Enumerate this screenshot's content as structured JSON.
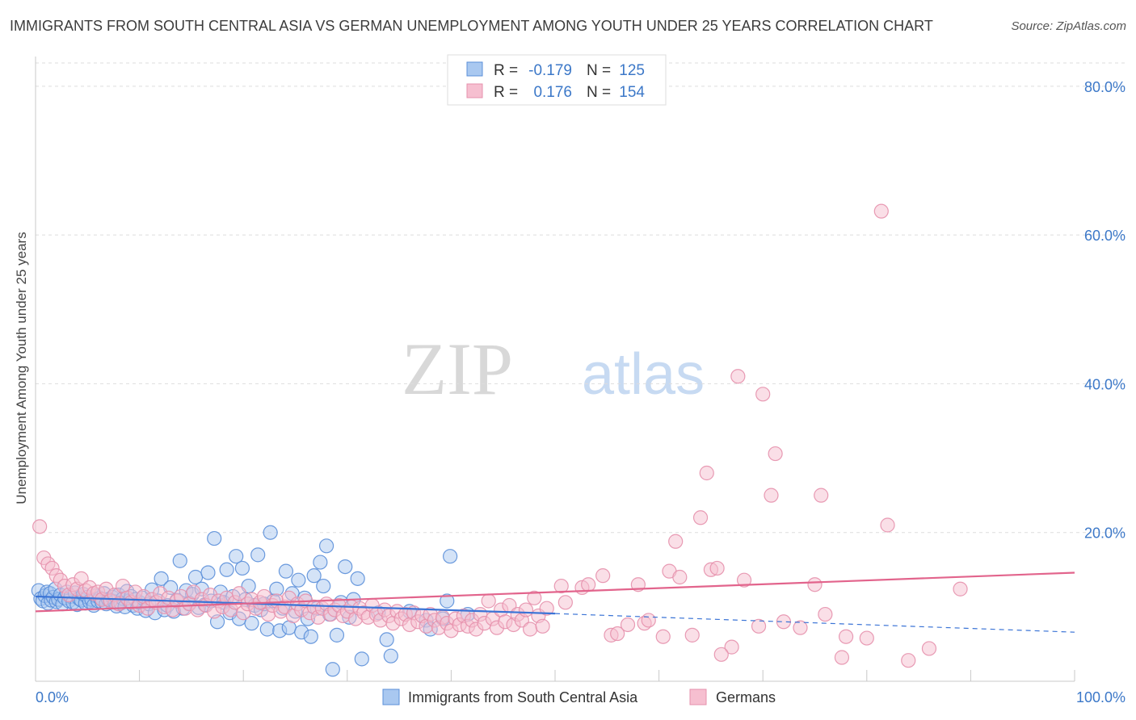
{
  "title": "IMMIGRANTS FROM SOUTH CENTRAL ASIA VS GERMAN UNEMPLOYMENT AMONG YOUTH UNDER 25 YEARS CORRELATION CHART",
  "source": "Source: ZipAtlas.com",
  "watermark": {
    "zip": "ZIP",
    "atlas": "atlas"
  },
  "colors": {
    "blue_fill": "#a9c8f0",
    "blue_stroke": "#5b8fd9",
    "blue_line": "#3b74d6",
    "pink_fill": "#f6bfd0",
    "pink_stroke": "#e690ac",
    "pink_line": "#e2648c",
    "axis_label": "#3c78c8",
    "grid": "#dddddd"
  },
  "stats_legend": {
    "rows": [
      {
        "r_label": "R =",
        "r_value": "-0.179",
        "n_label": "N =",
        "n_value": "125",
        "color": "blue"
      },
      {
        "r_label": "R =",
        "r_value": "0.176",
        "n_label": "N =",
        "n_value": "154",
        "color": "pink"
      }
    ]
  },
  "chart_data": {
    "type": "scatter",
    "title": "IMMIGRANTS FROM SOUTH CENTRAL ASIA VS GERMAN UNEMPLOYMENT AMONG YOUTH UNDER 25 YEARS CORRELATION CHART",
    "xlabel": "",
    "ylabel": "Unemployment Among Youth under 25 years",
    "xlim": [
      0,
      100
    ],
    "ylim": [
      0,
      84
    ],
    "x_tick_labels": [
      "0.0%",
      "100.0%"
    ],
    "y_ticks": [
      20,
      40,
      60,
      80
    ],
    "y_tick_labels": [
      "20.0%",
      "40.0%",
      "60.0%",
      "80.0%"
    ],
    "grid": true,
    "legend_position": "bottom",
    "series": [
      {
        "name": "Immigrants from South Central Asia",
        "color": "blue",
        "trend": {
          "x0": 0,
          "y0": 11.4,
          "x_solid_end": 50,
          "y_solid_end": 9.1,
          "x1": 100,
          "y1": 6.6
        },
        "points": [
          [
            0.3,
            12.2
          ],
          [
            0.5,
            11.1
          ],
          [
            0.7,
            10.8
          ],
          [
            0.9,
            11.5
          ],
          [
            1.1,
            12.0
          ],
          [
            1.2,
            10.5
          ],
          [
            1.4,
            11.8
          ],
          [
            1.5,
            10.9
          ],
          [
            1.7,
            11.3
          ],
          [
            1.9,
            12.4
          ],
          [
            2.0,
            10.7
          ],
          [
            2.2,
            11.0
          ],
          [
            2.4,
            11.6
          ],
          [
            2.6,
            10.4
          ],
          [
            2.8,
            11.2
          ],
          [
            3.0,
            12.0
          ],
          [
            3.2,
            10.8
          ],
          [
            3.4,
            11.4
          ],
          [
            3.6,
            10.6
          ],
          [
            3.8,
            11.9
          ],
          [
            4.0,
            10.3
          ],
          [
            4.2,
            11.1
          ],
          [
            4.4,
            10.9
          ],
          [
            4.6,
            11.7
          ],
          [
            4.8,
            10.5
          ],
          [
            5.0,
            11.3
          ],
          [
            5.2,
            10.7
          ],
          [
            5.4,
            11.0
          ],
          [
            5.6,
            10.2
          ],
          [
            5.8,
            11.5
          ],
          [
            6.0,
            10.8
          ],
          [
            6.2,
            11.2
          ],
          [
            6.4,
            10.6
          ],
          [
            6.6,
            11.8
          ],
          [
            6.8,
            10.4
          ],
          [
            7.0,
            11.0
          ],
          [
            7.2,
            10.9
          ],
          [
            7.4,
            11.3
          ],
          [
            7.6,
            10.7
          ],
          [
            7.8,
            10.1
          ],
          [
            8.0,
            11.6
          ],
          [
            8.2,
            10.5
          ],
          [
            8.4,
            11.1
          ],
          [
            8.6,
            10.0
          ],
          [
            8.8,
            12.1
          ],
          [
            9.0,
            10.8
          ],
          [
            9.2,
            11.4
          ],
          [
            9.4,
            10.2
          ],
          [
            9.6,
            11.0
          ],
          [
            9.8,
            9.8
          ],
          [
            10.0,
            10.6
          ],
          [
            10.3,
            11.2
          ],
          [
            10.6,
            9.5
          ],
          [
            10.9,
            10.4
          ],
          [
            11.2,
            12.3
          ],
          [
            11.5,
            9.2
          ],
          [
            11.8,
            10.8
          ],
          [
            12.1,
            13.8
          ],
          [
            12.4,
            9.6
          ],
          [
            12.7,
            10.2
          ],
          [
            13.0,
            12.6
          ],
          [
            13.3,
            9.4
          ],
          [
            13.6,
            10.9
          ],
          [
            13.9,
            16.2
          ],
          [
            14.2,
            9.8
          ],
          [
            14.5,
            12.2
          ],
          [
            14.8,
            10.5
          ],
          [
            15.1,
            11.7
          ],
          [
            15.4,
            14.0
          ],
          [
            15.7,
            9.9
          ],
          [
            16.0,
            12.4
          ],
          [
            16.3,
            10.3
          ],
          [
            16.6,
            14.6
          ],
          [
            16.9,
            10.8
          ],
          [
            17.2,
            19.2
          ],
          [
            17.5,
            8.0
          ],
          [
            17.8,
            12.0
          ],
          [
            18.1,
            10.6
          ],
          [
            18.4,
            15.0
          ],
          [
            18.7,
            9.2
          ],
          [
            19.0,
            11.4
          ],
          [
            19.3,
            16.8
          ],
          [
            19.6,
            8.4
          ],
          [
            19.9,
            15.2
          ],
          [
            20.2,
            11.0
          ],
          [
            20.5,
            12.8
          ],
          [
            20.8,
            7.8
          ],
          [
            21.1,
            10.2
          ],
          [
            21.4,
            17.0
          ],
          [
            21.7,
            9.6
          ],
          [
            22.0,
            10.4
          ],
          [
            22.3,
            7.0
          ],
          [
            22.6,
            20.0
          ],
          [
            22.9,
            10.8
          ],
          [
            23.2,
            12.4
          ],
          [
            23.5,
            6.8
          ],
          [
            23.8,
            9.8
          ],
          [
            24.1,
            14.8
          ],
          [
            24.4,
            7.2
          ],
          [
            24.7,
            11.8
          ],
          [
            25.0,
            9.4
          ],
          [
            25.3,
            13.6
          ],
          [
            25.6,
            6.6
          ],
          [
            25.9,
            11.2
          ],
          [
            26.2,
            8.4
          ],
          [
            26.5,
            6.0
          ],
          [
            26.8,
            14.2
          ],
          [
            27.1,
            9.8
          ],
          [
            27.4,
            16.0
          ],
          [
            27.7,
            12.8
          ],
          [
            28.0,
            18.2
          ],
          [
            28.3,
            9.0
          ],
          [
            28.6,
            1.6
          ],
          [
            29.0,
            6.2
          ],
          [
            29.4,
            10.6
          ],
          [
            29.8,
            15.4
          ],
          [
            30.2,
            8.6
          ],
          [
            30.6,
            11.0
          ],
          [
            31.0,
            13.8
          ],
          [
            31.4,
            3.0
          ],
          [
            33.0,
            9.2
          ],
          [
            33.8,
            5.6
          ],
          [
            34.2,
            3.4
          ],
          [
            36.0,
            9.4
          ],
          [
            37.6,
            8.2
          ],
          [
            38.0,
            7.0
          ],
          [
            39.2,
            8.4
          ],
          [
            39.6,
            10.8
          ],
          [
            39.9,
            16.8
          ],
          [
            41.6,
            9.0
          ]
        ]
      },
      {
        "name": "Germans",
        "color": "pink",
        "trend": {
          "x0": 0,
          "y0": 9.4,
          "x1": 100,
          "y1": 14.6
        },
        "points": [
          [
            0.4,
            20.8
          ],
          [
            0.8,
            16.6
          ],
          [
            1.2,
            15.8
          ],
          [
            1.6,
            15.2
          ],
          [
            2.0,
            14.2
          ],
          [
            2.4,
            13.6
          ],
          [
            2.8,
            12.8
          ],
          [
            3.2,
            11.6
          ],
          [
            3.6,
            13.0
          ],
          [
            4.0,
            12.4
          ],
          [
            4.4,
            13.8
          ],
          [
            4.8,
            12.2
          ],
          [
            5.2,
            12.6
          ],
          [
            5.6,
            11.8
          ],
          [
            6.0,
            12.0
          ],
          [
            6.4,
            11.0
          ],
          [
            6.8,
            12.4
          ],
          [
            7.2,
            10.8
          ],
          [
            7.6,
            11.6
          ],
          [
            8.0,
            10.4
          ],
          [
            8.4,
            12.8
          ],
          [
            8.8,
            11.2
          ],
          [
            9.2,
            10.6
          ],
          [
            9.6,
            12.0
          ],
          [
            10.0,
            10.2
          ],
          [
            10.4,
            11.4
          ],
          [
            10.8,
            9.8
          ],
          [
            11.2,
            11.0
          ],
          [
            11.6,
            10.6
          ],
          [
            12.0,
            11.8
          ],
          [
            12.4,
            10.0
          ],
          [
            12.8,
            11.2
          ],
          [
            13.2,
            9.6
          ],
          [
            13.6,
            10.8
          ],
          [
            14.0,
            11.4
          ],
          [
            14.4,
            9.8
          ],
          [
            14.8,
            10.4
          ],
          [
            15.2,
            12.0
          ],
          [
            15.6,
            9.6
          ],
          [
            16.0,
            11.0
          ],
          [
            16.4,
            10.2
          ],
          [
            16.8,
            11.6
          ],
          [
            17.2,
            9.4
          ],
          [
            17.6,
            10.8
          ],
          [
            18.0,
            10.0
          ],
          [
            18.4,
            11.2
          ],
          [
            18.8,
            9.6
          ],
          [
            19.2,
            10.6
          ],
          [
            19.6,
            11.8
          ],
          [
            20.0,
            9.2
          ],
          [
            20.4,
            10.4
          ],
          [
            20.8,
            11.0
          ],
          [
            21.2,
            9.8
          ],
          [
            21.6,
            10.6
          ],
          [
            22.0,
            11.4
          ],
          [
            22.4,
            9.0
          ],
          [
            22.8,
            10.2
          ],
          [
            23.2,
            10.8
          ],
          [
            23.6,
            9.4
          ],
          [
            24.0,
            10.0
          ],
          [
            24.4,
            11.2
          ],
          [
            24.8,
            8.8
          ],
          [
            25.2,
            10.4
          ],
          [
            25.6,
            9.6
          ],
          [
            26.0,
            10.8
          ],
          [
            26.4,
            9.2
          ],
          [
            26.8,
            10.0
          ],
          [
            27.2,
            8.6
          ],
          [
            27.6,
            9.8
          ],
          [
            28.0,
            10.4
          ],
          [
            28.4,
            9.0
          ],
          [
            28.8,
            9.6
          ],
          [
            29.2,
            10.2
          ],
          [
            29.6,
            8.8
          ],
          [
            30.0,
            9.4
          ],
          [
            30.4,
            10.0
          ],
          [
            30.8,
            8.4
          ],
          [
            31.2,
            9.8
          ],
          [
            31.6,
            9.2
          ],
          [
            32.0,
            8.6
          ],
          [
            32.4,
            10.2
          ],
          [
            32.8,
            9.0
          ],
          [
            33.2,
            8.2
          ],
          [
            33.6,
            9.6
          ],
          [
            34.0,
            8.8
          ],
          [
            34.4,
            7.8
          ],
          [
            34.8,
            9.4
          ],
          [
            35.2,
            8.4
          ],
          [
            35.6,
            9.0
          ],
          [
            36.0,
            7.6
          ],
          [
            36.4,
            9.2
          ],
          [
            36.8,
            8.0
          ],
          [
            37.2,
            8.8
          ],
          [
            37.6,
            7.4
          ],
          [
            38.0,
            9.0
          ],
          [
            38.4,
            8.2
          ],
          [
            38.8,
            7.2
          ],
          [
            39.2,
            8.6
          ],
          [
            39.6,
            7.8
          ],
          [
            40.0,
            6.8
          ],
          [
            40.4,
            8.4
          ],
          [
            40.8,
            7.6
          ],
          [
            41.2,
            8.8
          ],
          [
            41.6,
            7.4
          ],
          [
            42.0,
            8.2
          ],
          [
            42.4,
            7.0
          ],
          [
            42.8,
            9.0
          ],
          [
            43.2,
            7.8
          ],
          [
            43.6,
            10.8
          ],
          [
            44.0,
            8.4
          ],
          [
            44.4,
            7.2
          ],
          [
            44.8,
            9.6
          ],
          [
            45.2,
            8.0
          ],
          [
            45.6,
            10.2
          ],
          [
            46.0,
            7.6
          ],
          [
            46.4,
            9.0
          ],
          [
            46.8,
            8.2
          ],
          [
            47.2,
            9.6
          ],
          [
            47.6,
            7.0
          ],
          [
            48.0,
            11.2
          ],
          [
            48.4,
            8.8
          ],
          [
            48.8,
            7.4
          ],
          [
            49.2,
            9.8
          ],
          [
            50.6,
            12.8
          ],
          [
            51.0,
            10.6
          ],
          [
            52.6,
            12.6
          ],
          [
            53.2,
            13.0
          ],
          [
            54.6,
            14.2
          ],
          [
            55.4,
            6.2
          ],
          [
            56.0,
            6.4
          ],
          [
            57.0,
            7.6
          ],
          [
            58.0,
            13.0
          ],
          [
            58.6,
            7.8
          ],
          [
            59.0,
            8.2
          ],
          [
            60.4,
            6.0
          ],
          [
            61.0,
            14.8
          ],
          [
            61.6,
            18.8
          ],
          [
            62.0,
            14.0
          ],
          [
            63.2,
            6.2
          ],
          [
            64.0,
            22.0
          ],
          [
            65.0,
            15.0
          ],
          [
            65.6,
            15.2
          ],
          [
            67.0,
            4.6
          ],
          [
            67.6,
            41.0
          ],
          [
            68.2,
            13.6
          ],
          [
            70.0,
            38.6
          ],
          [
            70.8,
            25.0
          ],
          [
            71.2,
            30.6
          ],
          [
            72.0,
            8.0
          ],
          [
            75.0,
            13.0
          ],
          [
            75.6,
            25.0
          ],
          [
            77.6,
            3.2
          ],
          [
            81.4,
            63.2
          ],
          [
            82.0,
            21.0
          ],
          [
            84.0,
            2.8
          ],
          [
            89.0,
            12.4
          ],
          [
            69.6,
            7.4
          ],
          [
            64.6,
            28.0
          ],
          [
            66.0,
            3.6
          ],
          [
            73.6,
            7.2
          ],
          [
            76.0,
            9.0
          ],
          [
            78.0,
            6.0
          ],
          [
            80.0,
            5.8
          ],
          [
            86.0,
            4.4
          ]
        ]
      }
    ]
  }
}
